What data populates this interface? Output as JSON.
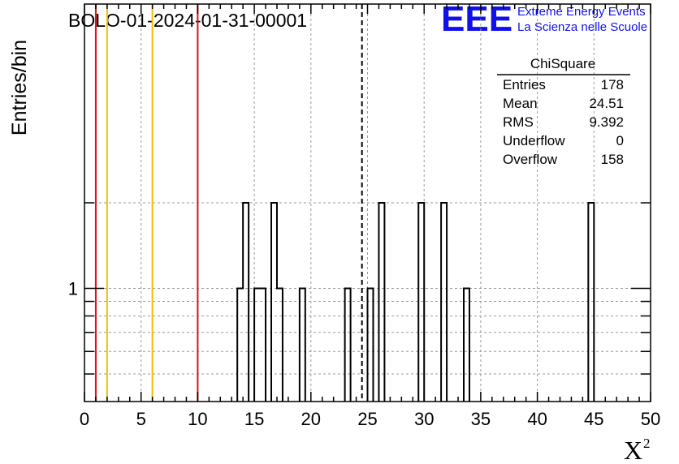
{
  "chart_data": {
    "type": "bar",
    "title": "BOLO-01-2024-01-31-00001",
    "xlabel": "X",
    "xlabel_superscript": "2",
    "ylabel": "Entries/bin",
    "xlim": [
      0,
      50
    ],
    "ylim_log": [
      0.4,
      10
    ],
    "y_scale": "log",
    "grid": true,
    "x_ticks": [
      "0",
      "5",
      "10",
      "15",
      "20",
      "25",
      "30",
      "35",
      "40",
      "45",
      "50"
    ],
    "x_tick_values": [
      0,
      5,
      10,
      15,
      20,
      25,
      30,
      35,
      40,
      45,
      50
    ],
    "y_tick_labels": [
      {
        "value": 1,
        "label": "1"
      }
    ],
    "bin_width": 0.5,
    "bins": [
      {
        "x": 13.5,
        "value": 1
      },
      {
        "x": 14.0,
        "value": 2
      },
      {
        "x": 15.0,
        "value": 1
      },
      {
        "x": 15.5,
        "value": 1
      },
      {
        "x": 16.5,
        "value": 2
      },
      {
        "x": 17.0,
        "value": 1
      },
      {
        "x": 19.0,
        "value": 1
      },
      {
        "x": 23.0,
        "value": 1
      },
      {
        "x": 25.0,
        "value": 1
      },
      {
        "x": 26.0,
        "value": 2
      },
      {
        "x": 29.5,
        "value": 2
      },
      {
        "x": 31.5,
        "value": 2
      },
      {
        "x": 33.5,
        "value": 1
      },
      {
        "x": 44.5,
        "value": 2
      }
    ],
    "reference_lines": [
      {
        "x": 1,
        "color": "#dd1111",
        "style": "solid"
      },
      {
        "x": 2,
        "color": "#f0c000",
        "style": "solid"
      },
      {
        "x": 6,
        "color": "#f0c000",
        "style": "solid"
      },
      {
        "x": 10,
        "color": "#dd1111",
        "style": "solid"
      },
      {
        "x": 24.51,
        "color": "#000000",
        "style": "dashed"
      }
    ],
    "stats_box": {
      "title": "ChiSquare",
      "rows": [
        {
          "label": "Entries",
          "value": "178"
        },
        {
          "label": "Mean",
          "value": "24.51"
        },
        {
          "label": "RMS",
          "value": "9.392"
        },
        {
          "label": "Underflow",
          "value": "0"
        },
        {
          "label": "Overflow",
          "value": "158"
        }
      ]
    }
  },
  "logo": {
    "mark": "EEE",
    "line1": "Extreme Energy Events",
    "line2": "La Scienza nelle Scuole",
    "color": "#1010ee"
  },
  "colors": {
    "histogram": "#000000",
    "grid": "#9a9a9a",
    "red_line": "#dd1111",
    "yellow_line": "#f0c000"
  }
}
